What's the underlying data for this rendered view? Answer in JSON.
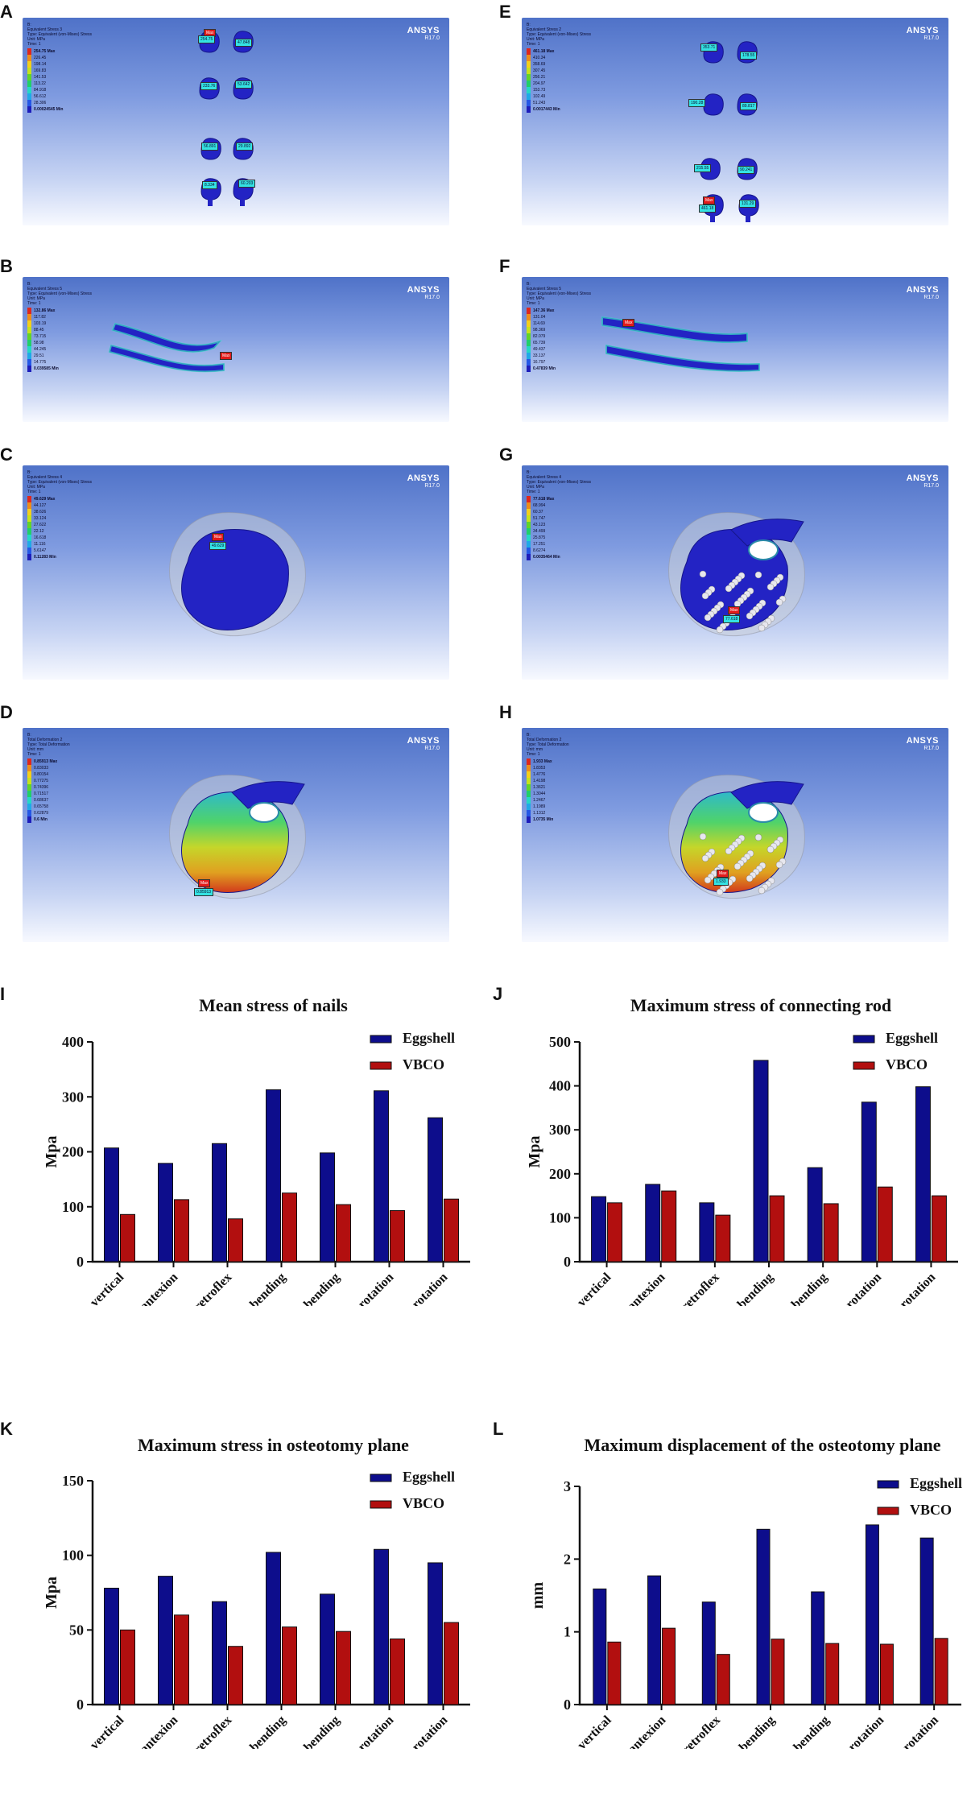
{
  "panel_labels": [
    "A",
    "B",
    "C",
    "D",
    "E",
    "F",
    "G",
    "H",
    "I",
    "J",
    "K",
    "L"
  ],
  "ansys_brand": {
    "name": "ANSYS",
    "version": "R17.0"
  },
  "sim_panels": [
    {
      "id": "A",
      "header": [
        "B:",
        "Equivalent Stress 3",
        "Type: Equivalent (von-Mises) Stress",
        "Unit: MPa",
        "Time: 1"
      ],
      "legend": [
        "254.75 Max",
        "226.45",
        "198.14",
        "169.83",
        "141.53",
        "113.22",
        "84.918",
        "56.612",
        "28.306",
        "0.00024545 Min"
      ],
      "tags": [
        {
          "text": "Max",
          "kind": "red"
        },
        {
          "text": "254.75",
          "kind": "cyan"
        },
        {
          "text": "47.848",
          "kind": "cyan"
        },
        {
          "text": "233.76",
          "kind": "cyan"
        },
        {
          "text": "53.642",
          "kind": "cyan"
        },
        {
          "text": "56.891",
          "kind": "cyan"
        },
        {
          "text": "29.892",
          "kind": "cyan"
        },
        {
          "text": "8.334",
          "kind": "cyan"
        },
        {
          "text": "60.203",
          "kind": "cyan"
        }
      ]
    },
    {
      "id": "E",
      "header": [
        "B:",
        "Equivalent Stress 2",
        "Type: Equivalent (von-Mises) Stress",
        "Unit: MPa",
        "Time: 1"
      ],
      "legend": [
        "461.18 Max",
        "410.34",
        "358.69",
        "307.45",
        "256.21",
        "204.97",
        "153.73",
        "102.49",
        "51.243",
        "0.0017443 Min"
      ],
      "tags": [
        {
          "text": "353.71",
          "kind": "cyan"
        },
        {
          "text": "178.55",
          "kind": "cyan"
        },
        {
          "text": "190.28",
          "kind": "cyan"
        },
        {
          "text": "89.817",
          "kind": "cyan"
        },
        {
          "text": "215.55",
          "kind": "cyan"
        },
        {
          "text": "90.241",
          "kind": "cyan"
        },
        {
          "text": "Max",
          "kind": "red"
        },
        {
          "text": "461.18",
          "kind": "cyan"
        },
        {
          "text": "131.29",
          "kind": "cyan"
        }
      ]
    },
    {
      "id": "B",
      "header": [
        "B:",
        "Equivalent Stress 5",
        "Type: Equivalent (von-Mises) Stress",
        "Unit: MPa",
        "Time: 1"
      ],
      "legend": [
        "132.86 Max",
        "117.82",
        "103.19",
        "88.45",
        "73.715",
        "58.98",
        "44.245",
        "29.51",
        "14.775",
        "0.039585 Min"
      ],
      "tags": [
        {
          "text": "Max",
          "kind": "red"
        }
      ]
    },
    {
      "id": "F",
      "header": [
        "B:",
        "Equivalent Stress 5",
        "Type: Equivalent (von-Mises) Stress",
        "Unit: MPa",
        "Time: 1"
      ],
      "legend": [
        "147.36 Max",
        "131.04",
        "114.69",
        "98.369",
        "82.079",
        "65.739",
        "49.437",
        "33.137",
        "16.797",
        "0.47839 Min"
      ],
      "tags": [
        {
          "text": "Max",
          "kind": "red"
        }
      ]
    },
    {
      "id": "C",
      "header": [
        "B:",
        "Equivalent Stress 4",
        "Type: Equivalent (von-Mises) Stress",
        "Unit: MPa",
        "Time: 1"
      ],
      "legend": [
        "49.629 Max",
        "44.127",
        "38.626",
        "33.124",
        "27.622",
        "22.12",
        "16.618",
        "11.116",
        "5.6147",
        "0.11283 Min"
      ],
      "tags": [
        {
          "text": "Max",
          "kind": "red"
        },
        {
          "text": "49.629",
          "kind": "cyan"
        }
      ]
    },
    {
      "id": "G",
      "header": [
        "B:",
        "Equivalent Stress 4",
        "Type: Equivalent (von-Mises) Stress",
        "Unit: MPa",
        "Time: 1"
      ],
      "legend": [
        "77.618 Max",
        "68.994",
        "60.37",
        "51.747",
        "43.123",
        "34.499",
        "25.875",
        "17.251",
        "8.6274",
        "0.0035464 Min"
      ],
      "tags": [
        {
          "text": "Max",
          "kind": "red"
        },
        {
          "text": "77.618",
          "kind": "cyan"
        }
      ]
    },
    {
      "id": "D",
      "header": [
        "B:",
        "Total Deformation 2",
        "Type: Total Deformation",
        "Unit: mm",
        "Time: 1"
      ],
      "legend": [
        "0.85913 Max",
        "0.83033",
        "0.80154",
        "0.77275",
        "0.74396",
        "0.71517",
        "0.68637",
        "0.65758",
        "0.62879",
        "0.6 Min"
      ],
      "tags": [
        {
          "text": "Max",
          "kind": "red"
        },
        {
          "text": "0.85913",
          "kind": "cyan"
        }
      ]
    },
    {
      "id": "H",
      "header": [
        "B:",
        "Total Deformation 2",
        "Type: Total Deformation",
        "Unit: mm",
        "Time: 1"
      ],
      "legend": [
        "1.933 Max",
        "1.8353",
        "1.4776",
        "1.4198",
        "1.3621",
        "1.3044",
        "1.2467",
        "1.1989",
        "1.1312",
        "1.0735 Min"
      ],
      "tags": [
        {
          "text": "Max",
          "kind": "red"
        },
        {
          "text": "1.933",
          "kind": "cyan"
        }
      ]
    }
  ],
  "legend_colors": [
    "#e0261c",
    "#ee8c1a",
    "#f4cf1b",
    "#c6e21a",
    "#60d42a",
    "#1fd06a",
    "#23d8c6",
    "#1fa9e8",
    "#2457e6",
    "#1d1dbb"
  ],
  "colors": {
    "eggshell": "#0d0d8c",
    "vbco": "#b20f0f"
  },
  "chart_data": [
    {
      "type": "bar",
      "title": "Mean stress of nails",
      "ylabel": "Mpa",
      "xlabel": "",
      "categories": [
        "vertical",
        "antexion",
        "retroflex",
        "left side bending",
        "right side bending",
        "levorotation",
        "right rotation"
      ],
      "ylim": [
        0,
        400
      ],
      "yticks": [
        0,
        100,
        200,
        300,
        400
      ],
      "series": [
        {
          "name": "Eggshell",
          "values": [
            207,
            179,
            215,
            313,
            198,
            311,
            262
          ]
        },
        {
          "name": "VBCO",
          "values": [
            86,
            113,
            78,
            125,
            104,
            93,
            114
          ]
        }
      ]
    },
    {
      "type": "bar",
      "title": "Maximum stress of connecting rod",
      "ylabel": "Mpa",
      "xlabel": "",
      "categories": [
        "vertical",
        "antexion",
        "retroflex",
        "left side bending",
        "right side bending",
        "levorotation",
        "right rotation"
      ],
      "ylim": [
        0,
        500
      ],
      "yticks": [
        0,
        100,
        200,
        300,
        400,
        500
      ],
      "series": [
        {
          "name": "Eggshell",
          "values": [
            148,
            176,
            134,
            458,
            214,
            363,
            398
          ]
        },
        {
          "name": "VBCO",
          "values": [
            134,
            161,
            106,
            150,
            132,
            170,
            150
          ]
        }
      ]
    },
    {
      "type": "bar",
      "title": "Maximum stress in osteotomy plane",
      "ylabel": "Mpa",
      "xlabel": "",
      "categories": [
        "vertical",
        "antexion",
        "retroflex",
        "left side bending",
        "right side bending",
        "levorotation",
        "right rotation"
      ],
      "ylim": [
        0,
        150
      ],
      "yticks": [
        0,
        50,
        100,
        150
      ],
      "series": [
        {
          "name": "Eggshell",
          "values": [
            78,
            86,
            69,
            102,
            74,
            104,
            95
          ]
        },
        {
          "name": "VBCO",
          "values": [
            50,
            60,
            39,
            52,
            49,
            44,
            55
          ]
        }
      ]
    },
    {
      "type": "bar",
      "title": "Maximum displacement of the osteotomy plane",
      "ylabel": "mm",
      "xlabel": "",
      "categories": [
        "vertical",
        "antexion",
        "retroflex",
        "left side bending",
        "right side bending",
        "levorotation",
        "right rotation"
      ],
      "ylim": [
        0,
        3
      ],
      "yticks": [
        0,
        1,
        2,
        3
      ],
      "series": [
        {
          "name": "Eggshell",
          "values": [
            1.59,
            1.77,
            1.41,
            2.41,
            1.55,
            2.47,
            2.29
          ]
        },
        {
          "name": "VBCO",
          "values": [
            0.86,
            1.05,
            0.69,
            0.9,
            0.84,
            0.83,
            0.91
          ]
        }
      ]
    }
  ]
}
